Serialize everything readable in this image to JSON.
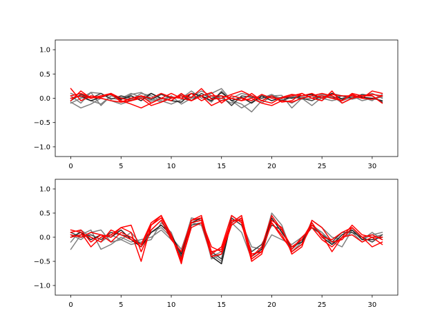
{
  "chart_data": [
    {
      "type": "line",
      "title": "",
      "xlabel": "",
      "ylabel": "",
      "xlim": [
        -1.55,
        32.55
      ],
      "ylim": [
        -1.2,
        1.2
      ],
      "xticks": [
        0,
        5,
        10,
        15,
        20,
        25,
        30
      ],
      "yticks": [
        -1.0,
        -0.5,
        0.0,
        0.5,
        1.0
      ],
      "xtick_labels": [
        "0",
        "5",
        "10",
        "15",
        "20",
        "25",
        "30"
      ],
      "ytick_labels": [
        "−1.0",
        "−0.5",
        "0.0",
        "0.5",
        "1.0"
      ],
      "x": [
        0,
        1,
        2,
        3,
        4,
        5,
        6,
        7,
        8,
        9,
        10,
        11,
        12,
        13,
        14,
        15,
        16,
        17,
        18,
        19,
        20,
        21,
        22,
        23,
        24,
        25,
        26,
        27,
        28,
        29,
        30,
        31
      ],
      "grid": false,
      "series": [
        {
          "color": "#7f7f7f",
          "values": [
            -0.08,
            -0.2,
            -0.12,
            0.0,
            -0.05,
            -0.12,
            -0.05,
            0.02,
            -0.06,
            0.0,
            -0.05,
            0.08,
            0.02,
            0.05,
            0.1,
            0.2,
            -0.05,
            -0.2,
            -0.08,
            0.05,
            0.02,
            -0.05,
            0.05,
            -0.02,
            0.0,
            0.08,
            0.02,
            -0.05,
            0.02,
            0.05,
            0.1,
            0.0
          ]
        },
        {
          "color": "#7f7f7f",
          "values": [
            0.1,
            0.02,
            -0.05,
            -0.12,
            0.05,
            0.02,
            -0.03,
            0.1,
            0.05,
            -0.05,
            -0.12,
            -0.03,
            0.02,
            0.15,
            0.05,
            0.0,
            -0.1,
            0.0,
            0.05,
            0.0,
            0.08,
            -0.02,
            -0.1,
            0.02,
            0.05,
            -0.05,
            0.1,
            0.05,
            -0.02,
            0.03,
            -0.02,
            0.05
          ]
        },
        {
          "color": "#7f7f7f",
          "values": [
            0.05,
            -0.1,
            0.12,
            0.1,
            0.0,
            -0.03,
            0.08,
            0.12,
            0.0,
            -0.08,
            0.05,
            -0.12,
            0.0,
            0.05,
            -0.08,
            0.15,
            -0.05,
            -0.12,
            -0.28,
            -0.05,
            0.05,
            0.06,
            -0.2,
            0.0,
            -0.15,
            0.02,
            0.05,
            -0.1,
            0.0,
            0.02,
            -0.05,
            0.08
          ]
        },
        {
          "color": "#7f7f7f",
          "values": [
            -0.1,
            0.0,
            0.12,
            -0.15,
            0.05,
            0.0,
            0.1,
            0.02,
            0.1,
            -0.02,
            0.03,
            0.0,
            0.15,
            0.0,
            0.05,
            -0.05,
            0.0,
            0.1,
            0.05,
            -0.1,
            0.05,
            0.0,
            0.08,
            0.0,
            0.05,
            0.0,
            -0.05,
            0.0,
            0.05,
            -0.05,
            0.0,
            0.02
          ]
        },
        {
          "color": "#1f1f1f",
          "values": [
            0.0,
            0.05,
            -0.05,
            0.02,
            0.08,
            -0.02,
            0.05,
            -0.05,
            0.1,
            0.0,
            -0.05,
            -0.08,
            0.1,
            0.05,
            -0.05,
            0.12,
            -0.05,
            0.02,
            -0.1,
            0.05,
            -0.05,
            0.02,
            0.0,
            0.05,
            0.08,
            0.0,
            0.1,
            -0.02,
            0.05,
            0.02,
            0.0,
            -0.05
          ]
        },
        {
          "color": "#3f3f3f",
          "values": [
            -0.05,
            0.08,
            0.0,
            0.1,
            -0.02,
            0.05,
            0.0,
            0.05,
            -0.03,
            0.08,
            0.0,
            0.05,
            -0.05,
            0.1,
            0.0,
            0.05,
            -0.15,
            0.05,
            0.02,
            0.0,
            0.05,
            -0.05,
            0.02,
            0.0,
            -0.05,
            0.05,
            0.0,
            0.05,
            0.0,
            0.08,
            0.05,
            -0.08
          ]
        },
        {
          "color": "#ff0000",
          "values": [
            0.2,
            -0.05,
            0.05,
            0.02,
            0.1,
            0.0,
            -0.05,
            0.0,
            -0.15,
            -0.08,
            0.0,
            0.05,
            0.02,
            0.2,
            -0.02,
            0.0,
            0.08,
            0.15,
            0.05,
            -0.05,
            -0.1,
            0.02,
            0.08,
            0.05,
            0.1,
            0.0,
            0.08,
            0.05,
            0.05,
            0.0,
            0.15,
            0.1
          ]
        },
        {
          "color": "#ff0000",
          "values": [
            -0.05,
            0.15,
            0.0,
            0.05,
            0.1,
            -0.08,
            -0.05,
            0.05,
            0.0,
            0.1,
            0.02,
            0.0,
            0.1,
            -0.05,
            0.05,
            0.05,
            0.0,
            -0.05,
            0.1,
            -0.05,
            0.05,
            -0.08,
            -0.05,
            0.1,
            0.0,
            0.05,
            0.0,
            -0.05,
            0.1,
            0.05,
            0.08,
            0.05
          ]
        },
        {
          "color": "#ff0000",
          "values": [
            0.0,
            0.05,
            0.0,
            0.05,
            0.08,
            -0.05,
            -0.12,
            -0.2,
            -0.1,
            0.0,
            -0.05,
            0.1,
            -0.05,
            0.05,
            -0.15,
            -0.05,
            0.0,
            -0.05,
            0.0,
            -0.1,
            -0.15,
            -0.05,
            -0.08,
            0.0,
            0.05,
            0.1,
            0.05,
            -0.05,
            0.08,
            0.0,
            -0.02,
            0.05
          ]
        },
        {
          "color": "#ff0000",
          "values": [
            0.05,
            0.1,
            0.02,
            0.0,
            -0.05,
            -0.08,
            0.0,
            0.05,
            -0.1,
            0.0,
            0.1,
            0.0,
            -0.05,
            0.05,
            0.12,
            -0.1,
            0.05,
            0.0,
            -0.05,
            0.08,
            0.0,
            0.0,
            0.05,
            0.1,
            0.0,
            -0.05,
            0.15,
            -0.1,
            0.0,
            0.05,
            0.05,
            -0.1
          ]
        }
      ]
    },
    {
      "type": "line",
      "title": "",
      "xlabel": "",
      "ylabel": "",
      "xlim": [
        -1.55,
        32.55
      ],
      "ylim": [
        -1.2,
        1.2
      ],
      "xticks": [
        0,
        5,
        10,
        15,
        20,
        25,
        30
      ],
      "yticks": [
        -1.0,
        -0.5,
        0.0,
        0.5,
        1.0
      ],
      "xtick_labels": [
        "0",
        "5",
        "10",
        "15",
        "20",
        "25",
        "30"
      ],
      "ytick_labels": [
        "−1.0",
        "−0.5",
        "0.0",
        "0.5",
        "1.0"
      ],
      "x": [
        0,
        1,
        2,
        3,
        4,
        5,
        6,
        7,
        8,
        9,
        10,
        11,
        12,
        13,
        14,
        15,
        16,
        17,
        18,
        19,
        20,
        21,
        22,
        23,
        24,
        25,
        26,
        27,
        28,
        29,
        30,
        31
      ],
      "grid": false,
      "series": [
        {
          "color": "#7f7f7f",
          "values": [
            -0.25,
            0.05,
            0.15,
            -0.25,
            -0.15,
            0.0,
            -0.1,
            -0.05,
            0.0,
            0.15,
            -0.05,
            -0.3,
            0.4,
            0.35,
            -0.45,
            -0.35,
            0.3,
            0.1,
            -0.45,
            -0.3,
            0.05,
            -0.05,
            -0.15,
            0.0,
            0.2,
            0.1,
            -0.1,
            -0.2,
            0.15,
            -0.05,
            0.05,
            0.1
          ]
        },
        {
          "color": "#7f7f7f",
          "values": [
            -0.1,
            0.15,
            0.0,
            -0.1,
            0.05,
            -0.05,
            0.1,
            -0.15,
            0.1,
            0.2,
            0.0,
            -0.25,
            0.35,
            0.4,
            -0.35,
            -0.5,
            0.45,
            0.3,
            -0.2,
            -0.25,
            0.5,
            0.25,
            -0.3,
            -0.15,
            0.35,
            0.2,
            0.0,
            -0.05,
            0.2,
            -0.05,
            0.1,
            -0.05
          ]
        },
        {
          "color": "#7f7f7f",
          "values": [
            0.05,
            -0.05,
            0.1,
            0.15,
            -0.1,
            -0.05,
            -0.15,
            -0.1,
            -0.05,
            0.3,
            0.1,
            -0.45,
            0.3,
            0.25,
            -0.4,
            -0.3,
            0.3,
            0.4,
            -0.35,
            -0.3,
            0.35,
            0.2,
            -0.3,
            -0.1,
            0.25,
            0.1,
            -0.15,
            0.0,
            0.1,
            -0.1,
            0.0,
            0.05
          ]
        },
        {
          "color": "#1f1f1f",
          "values": [
            0.0,
            0.1,
            -0.05,
            0.05,
            0.0,
            0.15,
            -0.05,
            -0.2,
            0.1,
            0.25,
            0.05,
            -0.35,
            0.3,
            0.4,
            -0.4,
            -0.55,
            0.35,
            0.35,
            -0.4,
            -0.25,
            0.4,
            0.1,
            -0.2,
            -0.1,
            0.3,
            0.0,
            -0.15,
            0.05,
            0.15,
            -0.05,
            -0.05,
            0.0
          ]
        },
        {
          "color": "#3f3f3f",
          "values": [
            0.1,
            0.0,
            0.05,
            -0.05,
            0.1,
            0.05,
            0.0,
            -0.15,
            0.15,
            0.35,
            0.0,
            -0.4,
            0.25,
            0.3,
            -0.3,
            -0.45,
            0.4,
            0.25,
            -0.3,
            -0.15,
            0.25,
            0.15,
            -0.25,
            -0.05,
            0.2,
            0.05,
            -0.1,
            0.1,
            0.1,
            0.0,
            -0.1,
            0.05
          ]
        },
        {
          "color": "#ff0000",
          "values": [
            0.15,
            0.1,
            -0.2,
            0.0,
            0.05,
            0.2,
            0.1,
            -0.5,
            0.25,
            0.45,
            0.05,
            -0.55,
            0.35,
            0.45,
            -0.35,
            -0.2,
            0.45,
            0.3,
            -0.5,
            -0.35,
            0.35,
            0.2,
            -0.35,
            -0.2,
            0.35,
            0.2,
            -0.1,
            -0.05,
            0.2,
            0.0,
            -0.2,
            -0.1
          ]
        },
        {
          "color": "#ff0000",
          "values": [
            0.0,
            0.05,
            0.0,
            -0.1,
            0.15,
            0.05,
            -0.05,
            -0.15,
            0.3,
            0.45,
            0.0,
            -0.45,
            0.3,
            0.35,
            -0.2,
            -0.3,
            0.3,
            0.45,
            -0.45,
            -0.3,
            0.3,
            0.05,
            -0.3,
            -0.15,
            0.25,
            0.05,
            -0.3,
            0.0,
            0.25,
            0.05,
            0.0,
            -0.15
          ]
        },
        {
          "color": "#ff0000",
          "values": [
            0.1,
            0.15,
            -0.1,
            0.05,
            0.0,
            0.2,
            0.25,
            -0.3,
            0.15,
            0.35,
            -0.05,
            -0.3,
            0.35,
            0.4,
            -0.3,
            -0.25,
            0.35,
            0.35,
            -0.4,
            -0.2,
            0.45,
            0.15,
            -0.2,
            -0.05,
            0.3,
            0.0,
            -0.05,
            0.1,
            0.2,
            0.0,
            0.05,
            -0.05
          ]
        },
        {
          "color": "#ff0000",
          "values": [
            0.05,
            0.0,
            0.1,
            0.05,
            -0.1,
            0.1,
            0.0,
            -0.2,
            0.25,
            0.4,
            0.05,
            -0.5,
            0.2,
            0.3,
            -0.4,
            -0.35,
            0.25,
            0.4,
            -0.35,
            -0.3,
            0.3,
            0.0,
            -0.25,
            0.0,
            0.2,
            -0.05,
            -0.2,
            0.0,
            0.05,
            -0.1,
            0.0,
            0.0
          ]
        }
      ]
    }
  ]
}
